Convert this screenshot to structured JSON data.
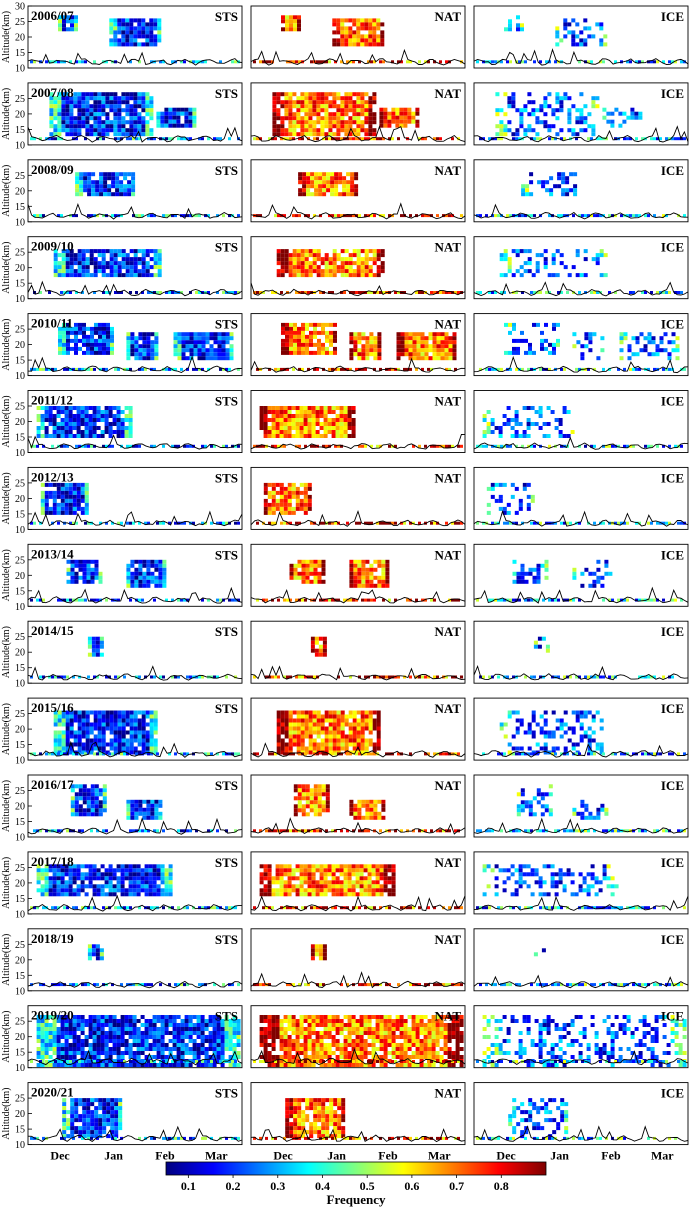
{
  "chart_data": {
    "type": "heatmap",
    "description_free": true,
    "ylabel": "Altitude(km)",
    "yticks_first_row": [
      10,
      15,
      20,
      25,
      30
    ],
    "yticks_other_rows": [
      10,
      15,
      20,
      25
    ],
    "ylim": [
      10,
      30
    ],
    "xticks": [
      "Dec",
      "Jan",
      "Feb",
      "Mar"
    ],
    "columns": [
      "STS",
      "NAT",
      "ICE"
    ],
    "seasons": [
      "2006/07",
      "2007/08",
      "2008/09",
      "2009/10",
      "2010/11",
      "2011/12",
      "2012/13",
      "2013/14",
      "2014/15",
      "2015/16",
      "2016/17",
      "2017/18",
      "2018/19",
      "2019/20",
      "2020/21"
    ],
    "colorbar": {
      "label": "Frequency",
      "ticks": [
        0.1,
        0.2,
        0.3,
        0.4,
        0.5,
        0.6,
        0.7,
        0.8
      ],
      "range": [
        0.05,
        0.9
      ],
      "colormap": "jet"
    }
  }
}
